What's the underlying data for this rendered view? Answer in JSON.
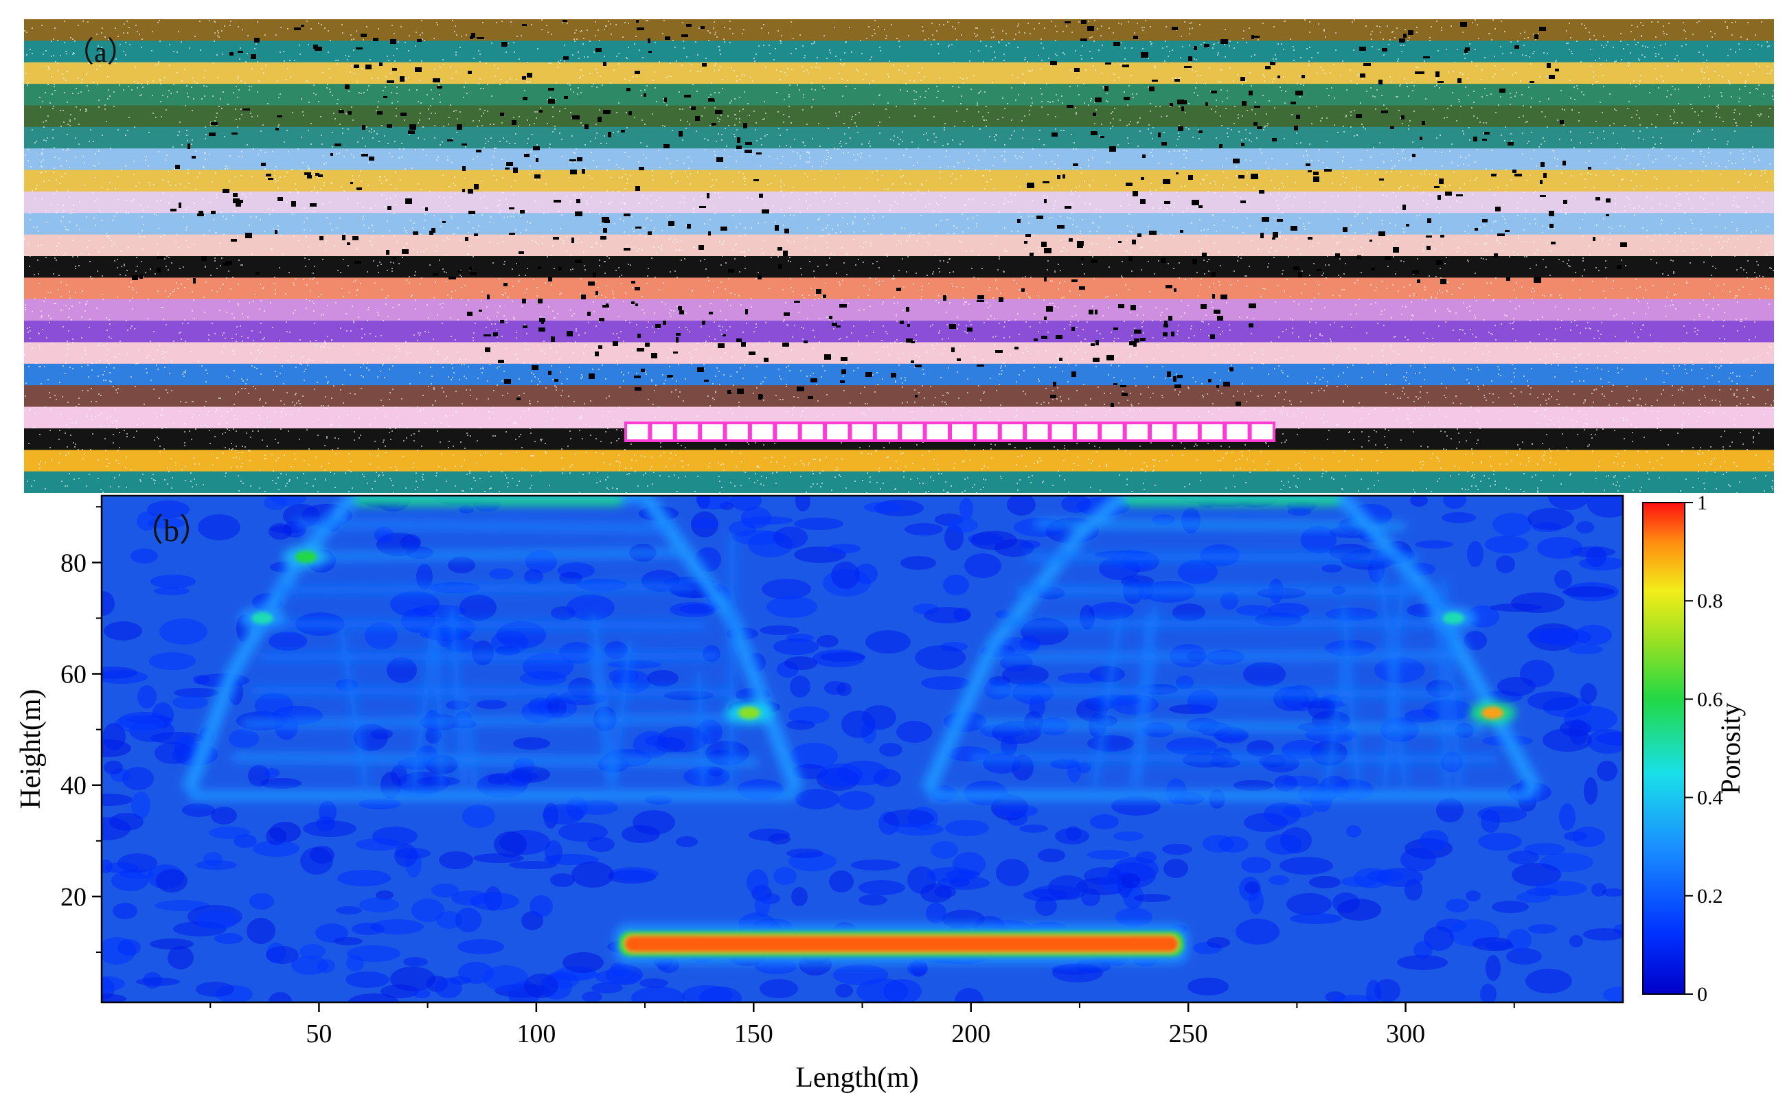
{
  "panel_a": {
    "label": "（a）",
    "layer_colors": [
      "#8a6a22",
      "#1e8c8c",
      "#e8c24a",
      "#2e8a66",
      "#3f6b37",
      "#2a8d88",
      "#8fc0ee",
      "#e8c24a",
      "#e4cdea",
      "#8fc0ee",
      "#f3c9c6",
      "#141414",
      "#f08a6a",
      "#cf8fe0",
      "#8a4fd6",
      "#f5c9d6",
      "#2f7fe0",
      "#7b4a42",
      "#f6c8e8",
      "#141414",
      "#f1b224",
      "#1f8c8c"
    ],
    "opening_color": "#ff3bd6",
    "fracture_color": "#000000"
  },
  "panel_b": {
    "label": "（b）",
    "colorbar_label": "Porosity",
    "colorbar_ticks": [
      "0",
      "0.2",
      "0.4",
      "0.6",
      "0.8",
      "1"
    ]
  },
  "chart_data": {
    "type": "heatmap",
    "xlabel": "Length(m)",
    "ylabel": "Height(m)",
    "xlim": [
      0,
      350
    ],
    "ylim": [
      1,
      92
    ],
    "x_ticks": [
      50,
      100,
      150,
      200,
      250,
      300
    ],
    "y_ticks": [
      20,
      40,
      60,
      80
    ],
    "colorbar": {
      "label": "Porosity",
      "min": 0,
      "max": 1,
      "ticks": [
        0,
        0.2,
        0.4,
        0.6,
        0.8,
        1
      ]
    },
    "background_porosity": 0.1,
    "features": [
      {
        "name": "goaf",
        "x": [
          119,
          249
        ],
        "y": [
          10,
          13
        ],
        "porosity": 0.95
      },
      {
        "name": "left fracture zone base",
        "x": [
          20,
          160
        ],
        "y": [
          38,
          39
        ],
        "porosity": 0.3
      },
      {
        "name": "right fracture zone base",
        "x": [
          190,
          330
        ],
        "y": [
          38,
          39
        ],
        "porosity": 0.3
      },
      {
        "name": "left arch outline",
        "points": [
          [
            20,
            39
          ],
          [
            30,
            60
          ],
          [
            45,
            80
          ],
          [
            58,
            92
          ],
          [
            125,
            92
          ],
          [
            145,
            70
          ],
          [
            160,
            39
          ]
        ],
        "porosity": 0.3
      },
      {
        "name": "right arch outline",
        "points": [
          [
            190,
            39
          ],
          [
            205,
            65
          ],
          [
            225,
            85
          ],
          [
            235,
            92
          ],
          [
            285,
            92
          ],
          [
            305,
            75
          ],
          [
            330,
            39
          ]
        ],
        "porosity": 0.3
      },
      {
        "name": "top separation left",
        "x": [
          58,
          120
        ],
        "y": [
          91,
          92
        ],
        "porosity": 0.55
      },
      {
        "name": "top separation right",
        "x": [
          235,
          285
        ],
        "y": [
          91,
          92
        ],
        "porosity": 0.55
      },
      {
        "name": "hotspot",
        "x": 320,
        "y": 53,
        "porosity": 0.9
      },
      {
        "name": "hotspot",
        "x": 47,
        "y": 81,
        "porosity": 0.6
      },
      {
        "name": "hotspot",
        "x": 149,
        "y": 53,
        "porosity": 0.7
      },
      {
        "name": "hotspot",
        "x": 37,
        "y": 70,
        "porosity": 0.5
      },
      {
        "name": "hotspot",
        "x": 311,
        "y": 70,
        "porosity": 0.5
      }
    ]
  }
}
